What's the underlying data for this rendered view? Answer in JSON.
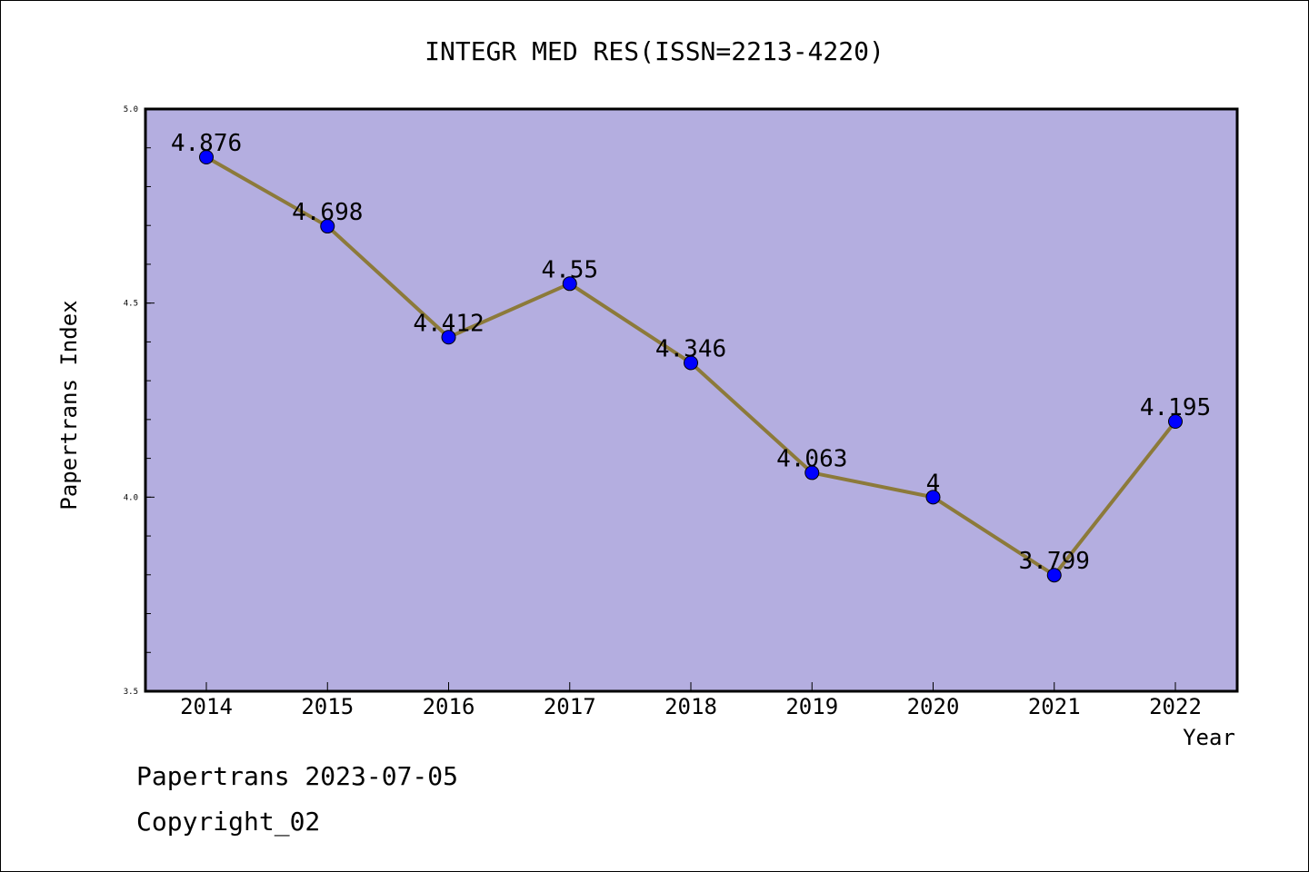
{
  "chart_data": {
    "type": "line",
    "title": "INTEGR MED RES(ISSN=2213-4220)",
    "xlabel": "Year",
    "ylabel": "Papertrans Index",
    "categories": [
      "2014",
      "2015",
      "2016",
      "2017",
      "2018",
      "2019",
      "2020",
      "2021",
      "2022"
    ],
    "series": [
      {
        "values": [
          4.876,
          4.698,
          4.412,
          4.55,
          4.346,
          4.063,
          4,
          3.799,
          4.195
        ],
        "labels": [
          "4.876",
          "4.698",
          "4.412",
          "4.55",
          "4.346",
          "4.063",
          "4",
          "3.799",
          "4.195"
        ]
      }
    ],
    "ylim": [
      3.5,
      5.0
    ],
    "yticks": [
      "3.5",
      "4.0",
      "4.5",
      "5.0"
    ],
    "grid": false,
    "colors": {
      "plot_background": "#b4aee0",
      "line": "#8c7a3a",
      "marker": "#0000ff"
    }
  },
  "footer": {
    "date_line": "Papertrans 2023-07-05",
    "copyright": "Copyright_02"
  }
}
